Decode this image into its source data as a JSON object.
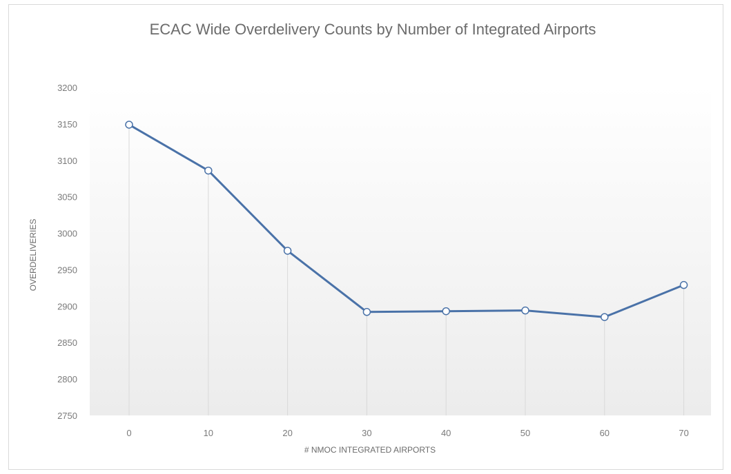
{
  "chart_data": {
    "type": "line",
    "title": "ECAC Wide Overdelivery Counts by Number of Integrated Airports",
    "xlabel": "# NMOC INTEGRATED AIRPORTS",
    "ylabel": "OVERDELIVERIES",
    "categories": [
      "0",
      "10",
      "20",
      "30",
      "40",
      "50",
      "60",
      "70"
    ],
    "series": [
      {
        "values": [
          3149,
          3086,
          2976,
          2892,
          2893,
          2894,
          2885,
          2929
        ]
      }
    ],
    "yticks": [
      "2750",
      "2800",
      "2850",
      "2900",
      "2950",
      "3000",
      "3050",
      "3100",
      "3150",
      "3200"
    ],
    "ylim": [
      2750,
      3200
    ],
    "grid": false,
    "drop_lines": true,
    "colors": {
      "line": "#4a72a8",
      "marker_fill": "#ffffff",
      "drop_line": "#d9d9d9",
      "background_gradient_end": "#ececec"
    }
  }
}
